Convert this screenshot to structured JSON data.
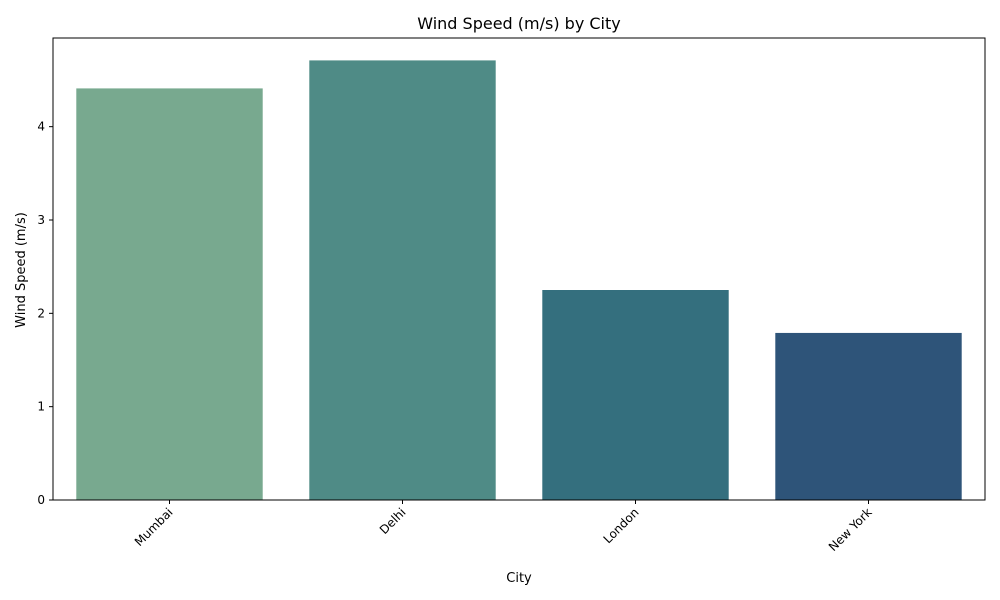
{
  "chart_data": {
    "type": "bar",
    "title": "Wind Speed (m/s) by City",
    "xlabel": "City",
    "ylabel": "Wind Speed (m/s)",
    "categories": [
      "Mumbai",
      "Delhi",
      "London",
      "New York"
    ],
    "values": [
      4.41,
      4.71,
      2.25,
      1.79
    ],
    "colors": [
      "#78a98f",
      "#4f8b86",
      "#346f7e",
      "#2e5479"
    ],
    "ylim": [
      0,
      4.95
    ],
    "yticks": [
      "0",
      "1",
      "2",
      "3",
      "4"
    ],
    "xtick_rotation": 45,
    "grid": false,
    "legend": "none"
  }
}
